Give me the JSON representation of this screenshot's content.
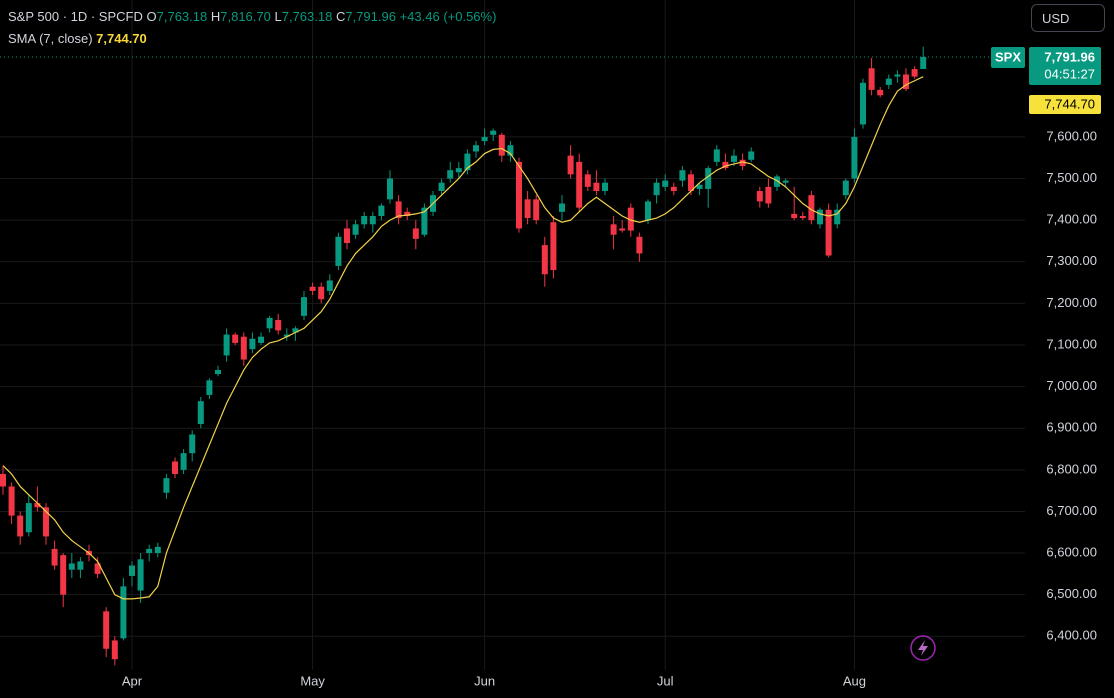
{
  "header": {
    "symbol": "S&P 500 · 1D · SPCFD",
    "open_label": "O",
    "open": "7,763.18",
    "high_label": "H",
    "high": "7,816.70",
    "low_label": "L",
    "low": "7,763.18",
    "close_label": "C",
    "close": "7,791.96",
    "change": "+43.46 (+0.56%)"
  },
  "currency": "USD",
  "chart_data": {
    "type": "candlestick",
    "categories": [
      null,
      null,
      null,
      null,
      null,
      null,
      null,
      null,
      null,
      null,
      null,
      null,
      null,
      null,
      null,
      "Apr",
      null,
      null,
      null,
      null,
      null,
      null,
      null,
      null,
      null,
      null,
      null,
      null,
      null,
      null,
      null,
      null,
      null,
      null,
      null,
      null,
      "May",
      null,
      null,
      null,
      null,
      null,
      null,
      null,
      null,
      null,
      null,
      null,
      null,
      null,
      null,
      null,
      null,
      null,
      null,
      null,
      "Jun",
      null,
      null,
      null,
      null,
      null,
      null,
      null,
      null,
      null,
      null,
      null,
      null,
      null,
      null,
      null,
      null,
      null,
      null,
      null,
      null,
      "Jul",
      null,
      null,
      null,
      null,
      null,
      null,
      null,
      null,
      null,
      null,
      null,
      null,
      null,
      null,
      null,
      null,
      null,
      null,
      null,
      null,
      null,
      "Aug",
      null,
      null,
      null,
      null,
      null,
      null,
      null,
      null
    ],
    "open": [
      6790,
      6760,
      6690,
      6650,
      6720,
      6710,
      6610,
      6595,
      6560,
      6560,
      6605,
      6575,
      6460,
      6390,
      6395,
      6545,
      6510,
      6600,
      6600,
      6745,
      6820,
      6800,
      6840,
      6910,
      6980,
      7030,
      7075,
      7125,
      7120,
      7090,
      7105,
      7140,
      7160,
      7120,
      7130,
      7170,
      7240,
      7240,
      7230,
      7290,
      7380,
      7365,
      7390,
      7390,
      7410,
      7450,
      7445,
      7420,
      7380,
      7365,
      7420,
      7470,
      7500,
      7515,
      7520,
      7565,
      7590,
      7605,
      7605,
      7555,
      7540,
      7450,
      7450,
      7340,
      7395,
      7420,
      7555,
      7540,
      7510,
      7490,
      7470,
      7390,
      7380,
      7430,
      7360,
      7400,
      7460,
      7480,
      7480,
      7495,
      7510,
      7475,
      7475,
      7540,
      7540,
      7540,
      7545,
      7545,
      7470,
      7480,
      7480,
      7490,
      7415,
      7410,
      7460,
      7390,
      7425,
      7390,
      7460,
      7500,
      7630,
      7765,
      7713,
      7725,
      7745,
      7750,
      7763,
      7763.18
    ],
    "high": [
      6810,
      6770,
      6700,
      6740,
      6760,
      6720,
      6630,
      6600,
      6600,
      6590,
      6620,
      6590,
      6470,
      6400,
      6540,
      6580,
      6600,
      6620,
      6625,
      6790,
      6830,
      6850,
      6895,
      6975,
      7020,
      7050,
      7140,
      7130,
      7130,
      7130,
      7130,
      7170,
      7175,
      7140,
      7145,
      7230,
      7250,
      7250,
      7270,
      7370,
      7400,
      7400,
      7420,
      7420,
      7440,
      7520,
      7460,
      7430,
      7400,
      7440,
      7470,
      7500,
      7540,
      7540,
      7570,
      7590,
      7620,
      7620,
      7610,
      7590,
      7550,
      7470,
      7460,
      7360,
      7410,
      7460,
      7580,
      7560,
      7520,
      7520,
      7500,
      7410,
      7400,
      7440,
      7370,
      7450,
      7500,
      7510,
      7490,
      7530,
      7520,
      7490,
      7530,
      7580,
      7560,
      7570,
      7560,
      7575,
      7480,
      7500,
      7510,
      7500,
      7480,
      7420,
      7470,
      7430,
      7440,
      7440,
      7500,
      7620,
      7740,
      7790,
      7720,
      7750,
      7760,
      7765,
      7770,
      7816.7
    ],
    "low": [
      6740,
      6670,
      6620,
      6640,
      6700,
      6620,
      6560,
      6470,
      6540,
      6540,
      6580,
      6540,
      6350,
      6330,
      6390,
      6520,
      6480,
      6580,
      6590,
      6730,
      6780,
      6790,
      6820,
      6900,
      6970,
      7025,
      7060,
      7100,
      7050,
      7080,
      7100,
      7130,
      7125,
      7110,
      7110,
      7160,
      7220,
      7200,
      7220,
      7280,
      7330,
      7355,
      7380,
      7370,
      7400,
      7440,
      7390,
      7400,
      7330,
      7360,
      7410,
      7460,
      7490,
      7500,
      7510,
      7550,
      7580,
      7590,
      7540,
      7540,
      7370,
      7390,
      7390,
      7240,
      7260,
      7400,
      7500,
      7420,
      7470,
      7460,
      7460,
      7330,
      7370,
      7360,
      7300,
      7390,
      7440,
      7470,
      7460,
      7480,
      7460,
      7460,
      7430,
      7530,
      7520,
      7530,
      7520,
      7540,
      7430,
      7430,
      7470,
      7480,
      7400,
      7400,
      7390,
      7380,
      7310,
      7380,
      7450,
      7490,
      7620,
      7700,
      7695,
      7715,
      7730,
      7710,
      7740,
      7763.18
    ],
    "close": [
      6760,
      6690,
      6640,
      6720,
      6710,
      6640,
      6570,
      6500,
      6575,
      6580,
      6595,
      6550,
      6370,
      6345,
      6520,
      6570,
      6585,
      6610,
      6615,
      6780,
      6790,
      6840,
      6885,
      6965,
      7015,
      7040,
      7125,
      7105,
      7065,
      7115,
      7120,
      7165,
      7135,
      7125,
      7140,
      7215,
      7230,
      7210,
      7255,
      7360,
      7345,
      7390,
      7410,
      7410,
      7435,
      7500,
      7405,
      7410,
      7355,
      7430,
      7460,
      7490,
      7520,
      7525,
      7560,
      7580,
      7600,
      7615,
      7555,
      7580,
      7380,
      7405,
      7400,
      7270,
      7280,
      7440,
      7510,
      7430,
      7480,
      7470,
      7490,
      7365,
      7375,
      7375,
      7320,
      7445,
      7490,
      7495,
      7470,
      7520,
      7470,
      7485,
      7525,
      7570,
      7525,
      7555,
      7530,
      7565,
      7445,
      7440,
      7505,
      7495,
      7405,
      7405,
      7400,
      7425,
      7315,
      7425,
      7495,
      7600,
      7730,
      7713,
      7700,
      7740,
      7750,
      7715,
      7745,
      7791.96
    ],
    "up_color": "#089981",
    "down_color": "#f23645",
    "sma": {
      "name": "SMA (7, close)",
      "color": "#f2d24a",
      "last_label": "7,744.70",
      "values": [
        6810,
        6790,
        6760,
        6740,
        6720,
        6700,
        6680,
        6650,
        6630,
        6615,
        6600,
        6580,
        6540,
        6500,
        6490,
        6490,
        6492,
        6495,
        6520,
        6600,
        6655,
        6710,
        6760,
        6810,
        6860,
        6910,
        6960,
        7000,
        7040,
        7070,
        7090,
        7105,
        7110,
        7120,
        7130,
        7140,
        7160,
        7180,
        7210,
        7250,
        7290,
        7320,
        7340,
        7360,
        7385,
        7400,
        7410,
        7412,
        7415,
        7420,
        7440,
        7460,
        7480,
        7500,
        7525,
        7540,
        7560,
        7570,
        7572,
        7560,
        7530,
        7500,
        7465,
        7430,
        7405,
        7395,
        7400,
        7420,
        7440,
        7455,
        7440,
        7425,
        7410,
        7400,
        7395,
        7400,
        7405,
        7415,
        7430,
        7450,
        7470,
        7490,
        7505,
        7520,
        7530,
        7535,
        7540,
        7535,
        7520,
        7505,
        7495,
        7480,
        7460,
        7440,
        7425,
        7415,
        7410,
        7415,
        7440,
        7480,
        7530,
        7580,
        7630,
        7675,
        7710,
        7725,
        7735,
        7744.7
      ]
    },
    "ylim": [
      6319,
      7929
    ],
    "yticks": [
      {
        "value": 6400,
        "label": "6,400.00"
      },
      {
        "value": 6500,
        "label": "6,500.00"
      },
      {
        "value": 6600,
        "label": "6,600.00"
      },
      {
        "value": 6700,
        "label": "6,700.00"
      },
      {
        "value": 6800,
        "label": "6,800.00"
      },
      {
        "value": 6900,
        "label": "6,900.00"
      },
      {
        "value": 7000,
        "label": "7,000.00"
      },
      {
        "value": 7100,
        "label": "7,100.00"
      },
      {
        "value": 7200,
        "label": "7,200.00"
      },
      {
        "value": 7300,
        "label": "7,300.00"
      },
      {
        "value": 7400,
        "label": "7,400.00"
      },
      {
        "value": 7500,
        "label": "7,500.00"
      },
      {
        "value": 7600,
        "label": "7,600.00"
      }
    ],
    "grid": true,
    "badge": {
      "symbol": "SPX",
      "countdown": "04:51:27"
    }
  }
}
